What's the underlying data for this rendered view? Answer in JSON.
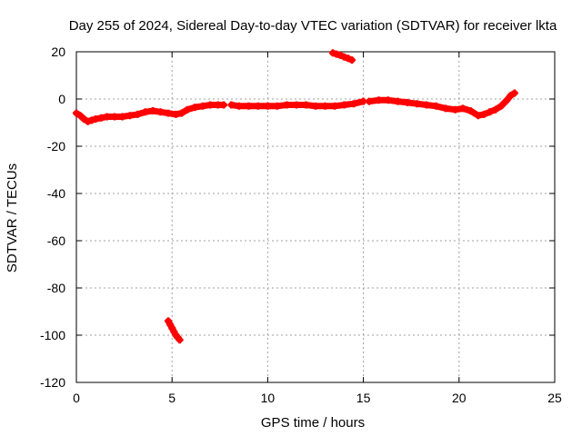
{
  "chart_data": {
    "type": "scatter",
    "title": "Day 255 of 2024, Sidereal Day-to-day VTEC variation (SDTVAR) for receiver lkta",
    "xlabel": "GPS time / hours",
    "ylabel": "SDTVAR / TECUs",
    "xlim": [
      0,
      25
    ],
    "ylim": [
      -120,
      20
    ],
    "xticks": [
      0,
      5,
      10,
      15,
      20,
      25
    ],
    "yticks": [
      -120,
      -100,
      -80,
      -60,
      -40,
      -20,
      0,
      20
    ],
    "grid": true,
    "marker": "+",
    "color": "#ff0000",
    "series": [
      {
        "x": [
          0.0,
          0.2,
          0.4,
          0.6,
          0.8,
          1.0,
          1.3,
          1.6,
          2.0,
          2.4,
          2.8,
          3.2,
          3.6,
          4.0,
          4.4,
          4.8,
          5.2,
          5.5,
          5.8,
          6.2,
          6.6,
          7.0,
          7.4,
          7.7
        ],
        "y": [
          -6,
          -7,
          -8.5,
          -9.5,
          -9,
          -8.5,
          -8,
          -7.5,
          -7.5,
          -7.5,
          -7,
          -6.5,
          -5.5,
          -5,
          -5.5,
          -6,
          -6.5,
          -6,
          -4.5,
          -3.5,
          -3,
          -2.5,
          -2.5,
          -2.5
        ]
      },
      {
        "x": [
          8.1,
          8.5,
          9.0,
          9.5,
          10.0,
          10.5,
          11.0,
          11.5,
          12.0,
          12.5,
          13.0,
          13.5,
          14.0,
          14.5,
          15.0
        ],
        "y": [
          -2.5,
          -3,
          -3,
          -3,
          -3,
          -3,
          -2.5,
          -2.5,
          -2.5,
          -3,
          -3,
          -3,
          -2.5,
          -2,
          -1
        ]
      },
      {
        "x": [
          15.3,
          15.8,
          16.3,
          16.8,
          17.3,
          17.8,
          18.3,
          18.8,
          19.3,
          19.8,
          20.2,
          20.6,
          21.0,
          21.3,
          21.6,
          21.9,
          22.2,
          22.5,
          22.7,
          22.9
        ],
        "y": [
          -1,
          -0.5,
          -0.5,
          -1,
          -1.5,
          -2,
          -2.5,
          -3,
          -4,
          -4.5,
          -4,
          -5,
          -7,
          -6.5,
          -5.5,
          -4.5,
          -3,
          -0.5,
          1.5,
          2.5
        ]
      },
      {
        "x": [
          13.4,
          13.6,
          13.8,
          14.0,
          14.2,
          14.4
        ],
        "y": [
          19.5,
          19,
          18.5,
          17.8,
          17.2,
          16.5
        ]
      },
      {
        "x": [
          4.8,
          4.9,
          5.0,
          5.1,
          5.2,
          5.3,
          5.4
        ],
        "y": [
          -94,
          -95.5,
          -97,
          -98.5,
          -100,
          -101,
          -102
        ]
      }
    ]
  }
}
